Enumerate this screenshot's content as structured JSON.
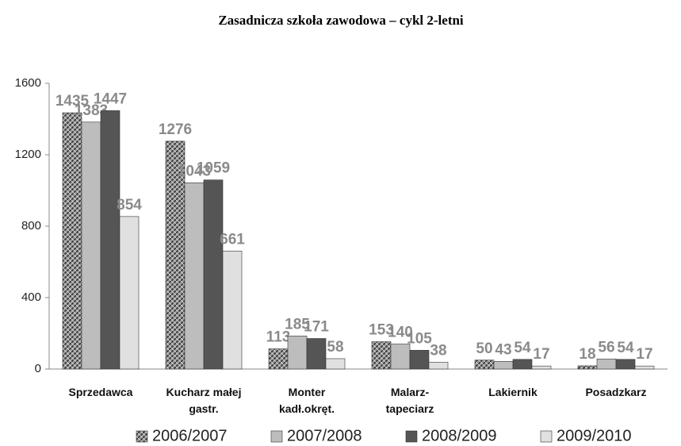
{
  "chart_data": {
    "type": "bar",
    "title": "Zasadnicza szkoła zawodowa – cykl 2-letni",
    "categories": [
      "Sprzedawca",
      "Kucharz małej gastr.",
      "Monter kadł.okręt.",
      "Malarz-tapeciarz",
      "Lakiernik",
      "Posadzkarz"
    ],
    "series": [
      {
        "name": "2006/2007",
        "color": "#666666",
        "values": [
          1435,
          1276,
          113,
          153,
          50,
          18
        ]
      },
      {
        "name": "2007/2008",
        "color": "#bdbdbd",
        "values": [
          1383,
          1043,
          185,
          140,
          43,
          56
        ]
      },
      {
        "name": "2008/2009",
        "color": "#555555",
        "values": [
          1447,
          1059,
          171,
          105,
          54,
          54
        ]
      },
      {
        "name": "2009/2010",
        "color": "#e0e0e0",
        "values": [
          854,
          661,
          58,
          38,
          17,
          17
        ]
      }
    ],
    "ylim": [
      0,
      1600
    ],
    "yticks": [
      0,
      400,
      800,
      1200,
      1600
    ],
    "grid": false,
    "legend": "bottom"
  }
}
